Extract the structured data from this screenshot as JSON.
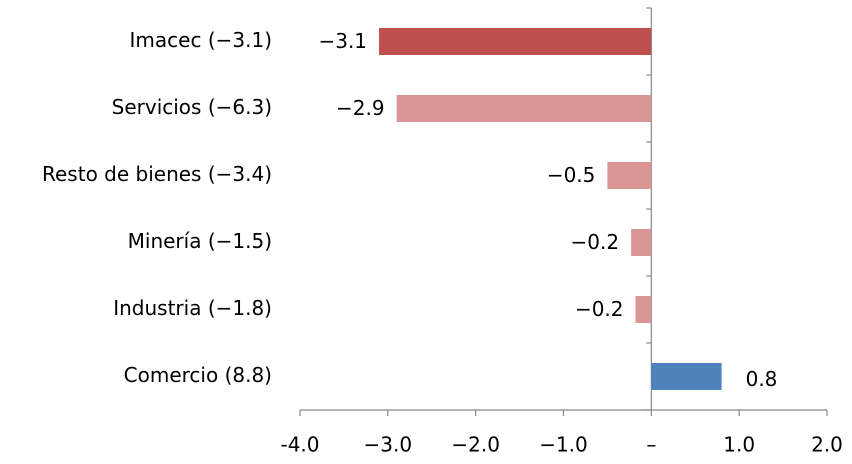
{
  "chart_data": {
    "type": "hbar",
    "categories": [
      "Imacec (−3.1)",
      "Servicios (−6.3)",
      "Resto de bienes (−3.4)",
      "Minería (−1.5)",
      "Industria (−1.8)",
      "Comercio (8.8)"
    ],
    "values": [
      -3.1,
      -2.9,
      -0.5,
      -0.23,
      -0.18,
      0.8
    ],
    "value_labels": [
      "−3.1",
      "−2.9",
      "−0.5",
      "−0.2",
      "−0.2",
      "0.8"
    ],
    "colors": [
      "#c0504d",
      "#d99694",
      "#d99694",
      "#d99694",
      "#d99694",
      "#4f81bd"
    ],
    "xlim": [
      -4,
      2
    ],
    "xticks": [
      {
        "value": -4,
        "label": "-4.0"
      },
      {
        "value": -3,
        "label": "−3.0"
      },
      {
        "value": -2,
        "label": "−2.0"
      },
      {
        "value": -1,
        "label": "−1.0"
      },
      {
        "value": 0,
        "label": "–"
      },
      {
        "value": 1,
        "label": "1.0"
      },
      {
        "value": 2,
        "label": "2.0"
      }
    ]
  }
}
